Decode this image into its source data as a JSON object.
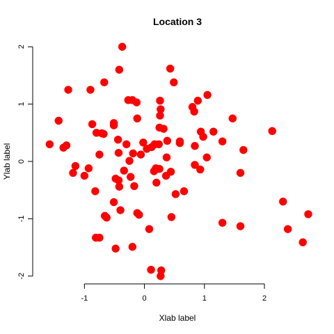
{
  "chart_data": {
    "type": "scatter",
    "title": "Location 3",
    "xlabel": "Xlab label",
    "ylabel": "Ylab label",
    "xlim": [
      -1.7,
      2.8
    ],
    "ylim": [
      -2.1,
      2.1
    ],
    "xticks": [
      -1,
      0,
      1,
      2
    ],
    "yticks": [
      -2,
      -1,
      0,
      1,
      2
    ],
    "grid": false,
    "point_color": "#ff0000",
    "points": [
      [
        -0.37,
        2.0
      ],
      [
        0.43,
        1.62
      ],
      [
        -0.42,
        1.6
      ],
      [
        0.49,
        1.38
      ],
      [
        -0.67,
        1.38
      ],
      [
        -1.27,
        1.25
      ],
      [
        -0.9,
        1.25
      ],
      [
        1.05,
        1.16
      ],
      [
        -0.27,
        1.07
      ],
      [
        -0.2,
        1.07
      ],
      [
        0.26,
        1.06
      ],
      [
        0.89,
        1.06
      ],
      [
        -0.13,
        1.03
      ],
      [
        0.27,
        0.91
      ],
      [
        0.8,
        0.95
      ],
      [
        0.83,
        0.87
      ],
      [
        0.26,
        0.8
      ],
      [
        -0.12,
        0.75
      ],
      [
        1.47,
        0.75
      ],
      [
        -1.43,
        0.71
      ],
      [
        -0.51,
        0.67
      ],
      [
        -0.51,
        0.63
      ],
      [
        -0.87,
        0.65
      ],
      [
        0.25,
        0.59
      ],
      [
        0.32,
        0.57
      ],
      [
        0.94,
        0.52
      ],
      [
        1.15,
        0.52
      ],
      [
        2.13,
        0.53
      ],
      [
        -0.8,
        0.5
      ],
      [
        -0.71,
        0.49
      ],
      [
        -0.68,
        0.48
      ],
      [
        0.98,
        0.43
      ],
      [
        -0.44,
        0.38
      ],
      [
        0.38,
        0.36
      ],
      [
        0.59,
        0.35
      ],
      [
        1.3,
        0.35
      ],
      [
        -1.58,
        0.3
      ],
      [
        -0.3,
        0.3
      ],
      [
        -0.02,
        0.33
      ],
      [
        0.17,
        0.3
      ],
      [
        0.24,
        0.3
      ],
      [
        0.59,
        0.32
      ],
      [
        0.12,
        0.25
      ],
      [
        -1.3,
        0.28
      ],
      [
        -1.35,
        0.24
      ],
      [
        0.04,
        0.22
      ],
      [
        0.84,
        0.27
      ],
      [
        1.65,
        0.2
      ],
      [
        -0.75,
        0.12
      ],
      [
        -0.43,
        0.15
      ],
      [
        -0.19,
        0.14
      ],
      [
        -0.06,
        0.12
      ],
      [
        0.37,
        0.07
      ],
      [
        1.04,
        0.07
      ],
      [
        -0.25,
        0.01
      ],
      [
        -1.15,
        -0.08
      ],
      [
        0.19,
        -0.12
      ],
      [
        0.25,
        -0.13
      ],
      [
        -0.93,
        -0.12
      ],
      [
        0.93,
        -0.14
      ],
      [
        0.84,
        -0.06
      ],
      [
        -0.34,
        -0.16
      ],
      [
        0.44,
        -0.18
      ],
      [
        0.16,
        -0.17
      ],
      [
        -1.19,
        -0.2
      ],
      [
        0.36,
        -0.25
      ],
      [
        1.6,
        -0.2
      ],
      [
        -1.0,
        -0.25
      ],
      [
        -0.23,
        -0.27
      ],
      [
        -0.48,
        -0.3
      ],
      [
        -0.43,
        -0.33
      ],
      [
        -0.42,
        -0.44
      ],
      [
        0.2,
        -0.37
      ],
      [
        -0.17,
        -0.43
      ],
      [
        0.66,
        -0.52
      ],
      [
        -0.82,
        -0.52
      ],
      [
        0.52,
        -0.57
      ],
      [
        -0.51,
        -0.71
      ],
      [
        2.31,
        -0.7
      ],
      [
        -0.4,
        -0.85
      ],
      [
        -0.12,
        -0.9
      ],
      [
        -0.09,
        -0.93
      ],
      [
        -0.66,
        -0.95
      ],
      [
        -0.63,
        -0.98
      ],
      [
        2.73,
        -0.92
      ],
      [
        0.45,
        -0.97
      ],
      [
        1.3,
        -1.07
      ],
      [
        1.6,
        -1.13
      ],
      [
        0.08,
        -1.18
      ],
      [
        2.39,
        -1.18
      ],
      [
        -0.81,
        -1.33
      ],
      [
        -0.75,
        -1.33
      ],
      [
        2.64,
        -1.41
      ],
      [
        -0.2,
        -1.49
      ],
      [
        -0.48,
        -1.52
      ],
      [
        0.11,
        -1.89
      ],
      [
        0.28,
        -1.9
      ],
      [
        0.27,
        -2.0
      ]
    ]
  }
}
